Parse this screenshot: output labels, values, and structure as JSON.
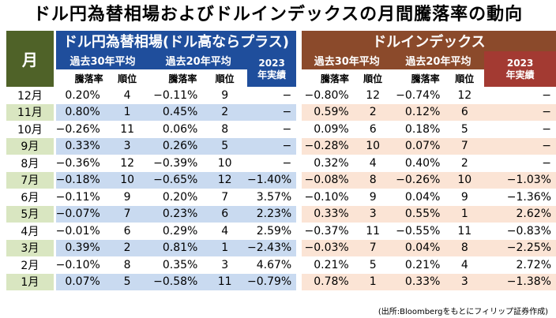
{
  "title": "ドル円為替相場およびドルインデックスの月間騰落率の動向",
  "header": {
    "month": "月",
    "usdjpy_group": "ドル円為替相場(ドル高ならプラス)",
    "dxy_group": "ドルインデックス",
    "avg30": "過去30年平均",
    "avg20": "過去20年平均",
    "y2023": "2023年実績",
    "change": "騰落率",
    "rank": "順位"
  },
  "rows": [
    {
      "month": "12月",
      "j30": "0.20%",
      "j30r": "4",
      "j20": "−0.11%",
      "j20r": "9",
      "j23": "−",
      "x30": "−0.80%",
      "x30r": "12",
      "x20": "−0.74%",
      "x20r": "12",
      "x23": "−"
    },
    {
      "month": "11月",
      "j30": "0.80%",
      "j30r": "1",
      "j20": "0.45%",
      "j20r": "2",
      "j23": "−",
      "x30": "0.59%",
      "x30r": "2",
      "x20": "0.12%",
      "x20r": "6",
      "x23": "−"
    },
    {
      "month": "10月",
      "j30": "−0.26%",
      "j30r": "11",
      "j20": "0.06%",
      "j20r": "8",
      "j23": "−",
      "x30": "0.09%",
      "x30r": "6",
      "x20": "0.18%",
      "x20r": "5",
      "x23": "−"
    },
    {
      "month": "9月",
      "j30": "0.33%",
      "j30r": "3",
      "j20": "0.26%",
      "j20r": "5",
      "j23": "−",
      "x30": "−0.28%",
      "x30r": "10",
      "x20": "0.07%",
      "x20r": "7",
      "x23": "−"
    },
    {
      "month": "8月",
      "j30": "−0.36%",
      "j30r": "12",
      "j20": "−0.39%",
      "j20r": "10",
      "j23": "−",
      "x30": "0.32%",
      "x30r": "4",
      "x20": "0.40%",
      "x20r": "2",
      "x23": "−"
    },
    {
      "month": "7月",
      "j30": "−0.18%",
      "j30r": "10",
      "j20": "−0.65%",
      "j20r": "12",
      "j23": "−1.40%",
      "x30": "−0.08%",
      "x30r": "8",
      "x20": "−0.26%",
      "x20r": "10",
      "x23": "−1.03%"
    },
    {
      "month": "6月",
      "j30": "−0.11%",
      "j30r": "9",
      "j20": "0.20%",
      "j20r": "7",
      "j23": "3.57%",
      "x30": "−0.10%",
      "x30r": "9",
      "x20": "0.04%",
      "x20r": "9",
      "x23": "−1.36%"
    },
    {
      "month": "5月",
      "j30": "−0.07%",
      "j30r": "7",
      "j20": "0.23%",
      "j20r": "6",
      "j23": "2.23%",
      "x30": "0.33%",
      "x30r": "3",
      "x20": "0.55%",
      "x20r": "1",
      "x23": "2.62%"
    },
    {
      "month": "4月",
      "j30": "−0.01%",
      "j30r": "6",
      "j20": "0.29%",
      "j20r": "4",
      "j23": "2.59%",
      "x30": "−0.37%",
      "x30r": "11",
      "x20": "−0.55%",
      "x20r": "11",
      "x23": "−0.83%"
    },
    {
      "month": "3月",
      "j30": "0.39%",
      "j30r": "2",
      "j20": "0.81%",
      "j20r": "1",
      "j23": "−2.43%",
      "x30": "−0.03%",
      "x30r": "7",
      "x20": "0.04%",
      "x20r": "8",
      "x23": "−2.25%"
    },
    {
      "month": "2月",
      "j30": "−0.10%",
      "j30r": "8",
      "j20": "0.35%",
      "j20r": "3",
      "j23": "4.67%",
      "x30": "0.21%",
      "x30r": "5",
      "x20": "0.21%",
      "x20r": "4",
      "x23": "2.72%"
    },
    {
      "month": "1月",
      "j30": "0.07%",
      "j30r": "5",
      "j20": "−0.58%",
      "j20r": "11",
      "j23": "−0.79%",
      "x30": "0.78%",
      "x30r": "1",
      "x20": "0.33%",
      "x20r": "3",
      "x23": "−1.38%"
    }
  ],
  "source": "(出所:Bloombergをもとにフィリップ証券作成)"
}
